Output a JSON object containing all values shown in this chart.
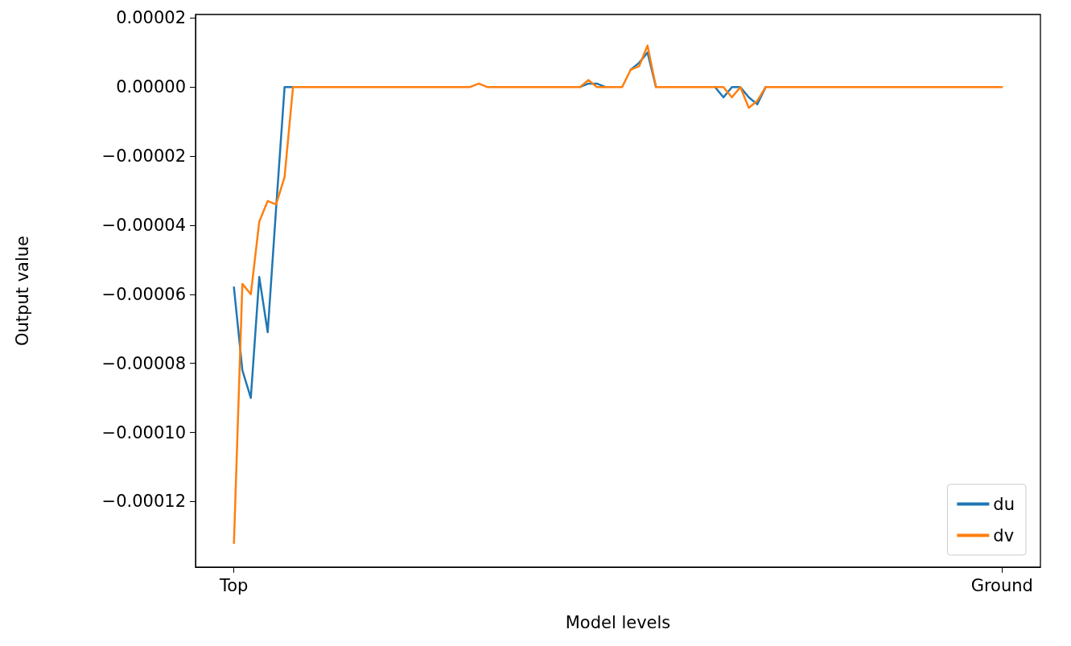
{
  "chart_data": {
    "type": "line",
    "xlabel": "Model levels",
    "ylabel": "Output value",
    "categories": [
      "Top",
      null,
      null,
      null,
      null,
      null,
      null,
      null,
      null,
      null,
      null,
      null,
      null,
      null,
      null,
      null,
      null,
      null,
      null,
      null,
      null,
      null,
      null,
      null,
      null,
      null,
      null,
      null,
      null,
      null,
      null,
      null,
      null,
      null,
      null,
      null,
      null,
      null,
      null,
      null,
      null,
      null,
      null,
      null,
      null,
      null,
      null,
      null,
      null,
      null,
      null,
      null,
      null,
      null,
      null,
      null,
      null,
      null,
      null,
      null,
      null,
      null,
      null,
      null,
      null,
      null,
      null,
      null,
      null,
      null,
      null,
      null,
      null,
      null,
      null,
      null,
      null,
      null,
      null,
      null,
      null,
      null,
      null,
      null,
      null,
      null,
      null,
      null,
      null,
      null,
      null,
      "Ground"
    ],
    "series": [
      {
        "name": "du",
        "color": "#1f77b4",
        "values": [
          -5.8e-05,
          -8.2e-05,
          -9e-05,
          -5.5e-05,
          -7.1e-05,
          -3.5e-05,
          0,
          0,
          null,
          null,
          null,
          null,
          null,
          null,
          null,
          null,
          null,
          null,
          null,
          null,
          null,
          null,
          null,
          null,
          null,
          null,
          null,
          null,
          null,
          null,
          null,
          null,
          null,
          null,
          null,
          null,
          null,
          null,
          null,
          null,
          null,
          0,
          1e-06,
          1e-06,
          0,
          null,
          null,
          5e-06,
          7e-06,
          1e-05,
          0,
          null,
          null,
          null,
          null,
          null,
          null,
          0,
          -3e-06,
          0,
          0,
          -3e-06,
          -5e-06,
          0,
          null,
          null,
          null,
          null,
          null,
          null,
          null,
          null,
          null,
          null,
          null,
          null,
          null,
          null,
          null,
          null,
          null,
          null,
          null,
          null,
          null,
          null,
          null,
          null,
          null,
          null,
          null,
          null
        ]
      },
      {
        "name": "dv",
        "color": "#ff7f0e",
        "values": [
          -0.000132,
          -5.7e-05,
          -6e-05,
          -3.9e-05,
          -3.3e-05,
          -3.4e-05,
          -2.6e-05,
          0,
          0,
          0,
          0,
          0,
          0,
          0,
          0,
          0,
          0,
          0,
          0,
          0,
          0,
          0,
          0,
          0,
          0,
          0,
          0,
          0,
          0,
          1e-06,
          0,
          0,
          0,
          0,
          0,
          0,
          0,
          0,
          0,
          0,
          0,
          0,
          2e-06,
          0,
          0,
          0,
          0,
          5e-06,
          6e-06,
          1.2e-05,
          0,
          0,
          0,
          0,
          0,
          0,
          0,
          0,
          0,
          -3e-06,
          0,
          -6e-06,
          -4e-06,
          0,
          0,
          0,
          0,
          0,
          0,
          0,
          0,
          0,
          0,
          0,
          0,
          0,
          0,
          0,
          0,
          0,
          0,
          0,
          0,
          0,
          0,
          0,
          0,
          0,
          0,
          0,
          0,
          0
        ]
      }
    ],
    "ylim": [
      -0.000139,
      2.1e-05
    ],
    "yticks": [
      {
        "value": -0.00012,
        "label": "−0.00012"
      },
      {
        "value": -0.0001,
        "label": "−0.00010"
      },
      {
        "value": -8e-05,
        "label": "−0.00008"
      },
      {
        "value": -6e-05,
        "label": "−0.00006"
      },
      {
        "value": -4e-05,
        "label": "−0.00004"
      },
      {
        "value": -2e-05,
        "label": "−0.00002"
      },
      {
        "value": 0,
        "label": "0.00000"
      },
      {
        "value": 2e-05,
        "label": "0.00002"
      }
    ],
    "legend": "bottom right"
  }
}
